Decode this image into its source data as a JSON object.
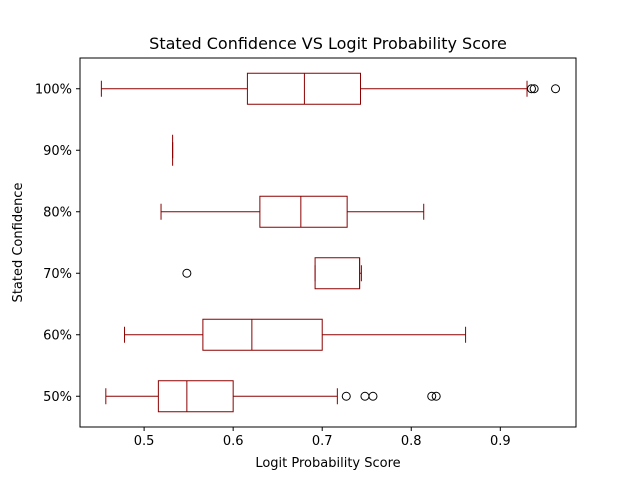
{
  "chart_data": {
    "type": "boxplot",
    "orientation": "horizontal",
    "title": "Stated Confidence VS Logit Probability Score",
    "xlabel": "Logit Probability Score",
    "ylabel": "Stated Confidence",
    "xlim": [
      0.428,
      0.985
    ],
    "xticks": [
      0.5,
      0.6,
      0.7,
      0.8,
      0.9
    ],
    "xtick_labels": [
      "0.5",
      "0.6",
      "0.7",
      "0.8",
      "0.9"
    ],
    "categories": [
      "50%",
      "60%",
      "70%",
      "80%",
      "90%",
      "100%"
    ],
    "box_color": "#8b0000",
    "grid": false,
    "boxes": [
      {
        "category": "50%",
        "whisker_low": 0.457,
        "q1": 0.516,
        "median": 0.548,
        "q3": 0.6,
        "whisker_high": 0.717,
        "outliers": [
          0.727,
          0.748,
          0.757,
          0.823,
          0.828
        ]
      },
      {
        "category": "60%",
        "whisker_low": 0.478,
        "q1": 0.566,
        "median": 0.621,
        "q3": 0.7,
        "whisker_high": 0.861,
        "outliers": []
      },
      {
        "category": "70%",
        "whisker_low": 0.692,
        "q1": 0.692,
        "median": 0.742,
        "q3": 0.742,
        "whisker_high": 0.744,
        "outliers": [
          0.548
        ]
      },
      {
        "category": "80%",
        "whisker_low": 0.519,
        "q1": 0.63,
        "median": 0.676,
        "q3": 0.728,
        "whisker_high": 0.814,
        "outliers": []
      },
      {
        "category": "90%",
        "whisker_low": 0.532,
        "q1": 0.532,
        "median": 0.532,
        "q3": 0.532,
        "whisker_high": 0.532,
        "outliers": []
      },
      {
        "category": "100%",
        "whisker_low": 0.452,
        "q1": 0.616,
        "median": 0.68,
        "q3": 0.743,
        "whisker_high": 0.93,
        "outliers": [
          0.935,
          0.938,
          0.962
        ]
      }
    ]
  }
}
